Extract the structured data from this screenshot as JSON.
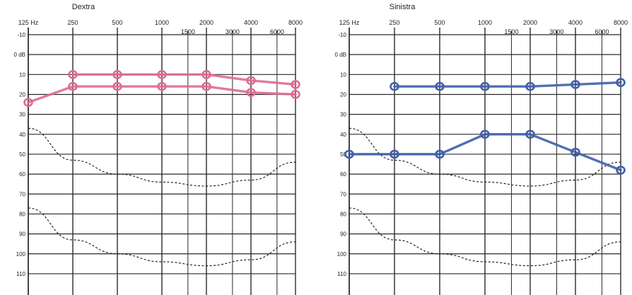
{
  "chart_data": [
    {
      "type": "line",
      "title": "Dextra",
      "x_ticks": [
        "125 Hz",
        "250",
        "500",
        "1000",
        "2000",
        "4000",
        "8000"
      ],
      "x_mid_ticks": [
        "1500",
        "3000",
        "6000"
      ],
      "y_ticks": [
        "-10",
        "0 dB",
        "10",
        "20",
        "30",
        "40",
        "50",
        "60",
        "70",
        "80",
        "90",
        "100",
        "110"
      ],
      "ylim": [
        -10,
        115
      ],
      "x_scale": "log2",
      "grid": true,
      "series": [
        {
          "color": "#e06a93",
          "x": [
            250,
            500,
            1000,
            2000,
            4000,
            8000
          ],
          "y": [
            10,
            10,
            10,
            10,
            13,
            15
          ]
        },
        {
          "color": "#e06a93",
          "x": [
            125,
            250,
            500,
            1000,
            2000,
            4000,
            8000
          ],
          "y": [
            24,
            16,
            16,
            16,
            16,
            19,
            20
          ]
        }
      ],
      "reference_curves": [
        {
          "style": "dashed",
          "x": [
            125,
            250,
            500,
            1000,
            2000,
            4000,
            8000
          ],
          "y": [
            37,
            53,
            60,
            64,
            66,
            63,
            54
          ]
        },
        {
          "style": "dashed",
          "x": [
            125,
            250,
            500,
            1000,
            2000,
            4000,
            8000
          ],
          "y": [
            77,
            93,
            100,
            104,
            106,
            103,
            94
          ]
        }
      ]
    },
    {
      "type": "line",
      "title": "Sinistra",
      "x_ticks": [
        "125 Hz",
        "250",
        "500",
        "1000",
        "2000",
        "4000",
        "8000"
      ],
      "x_mid_ticks": [
        "1500",
        "3000",
        "6000"
      ],
      "y_ticks": [
        "-10",
        "0 dB",
        "10",
        "20",
        "30",
        "40",
        "50",
        "60",
        "70",
        "80",
        "90",
        "100",
        "110"
      ],
      "ylim": [
        -10,
        115
      ],
      "x_scale": "log2",
      "grid": true,
      "series": [
        {
          "color": "#3f5fa8",
          "x": [
            250,
            500,
            1000,
            2000,
            4000,
            8000
          ],
          "y": [
            16,
            16,
            16,
            16,
            15,
            14
          ]
        },
        {
          "color": "#3f5fa8",
          "x": [
            125,
            250,
            500,
            1000,
            2000,
            4000,
            8000
          ],
          "y": [
            50,
            50,
            50,
            40,
            40,
            49,
            58
          ]
        }
      ],
      "reference_curves": [
        {
          "style": "dashed",
          "x": [
            125,
            250,
            500,
            1000,
            2000,
            4000,
            8000
          ],
          "y": [
            37,
            53,
            60,
            64,
            66,
            63,
            54
          ]
        },
        {
          "style": "dashed",
          "x": [
            125,
            250,
            500,
            1000,
            2000,
            4000,
            8000
          ],
          "y": [
            77,
            93,
            100,
            104,
            106,
            103,
            94
          ]
        }
      ]
    }
  ]
}
